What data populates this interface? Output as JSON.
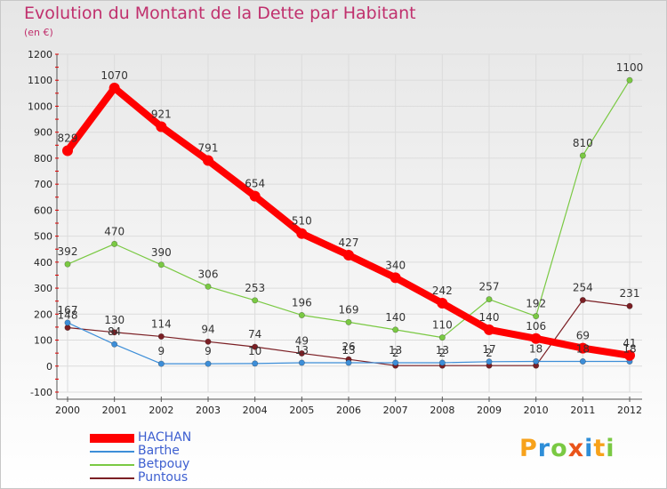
{
  "title": "Evolution du Montant de la Dette par Habitant",
  "subtitle": "(en €)",
  "logo": "Proxiti",
  "colors": {
    "title": "#c0306d",
    "legend_text": "#3d5fd0",
    "grid": "#dcdcdc",
    "axis": "#555555"
  },
  "chart_data": {
    "type": "line",
    "title": "Evolution du Montant de la Dette par Habitant",
    "subtitle": "(en €)",
    "xlabel": "",
    "ylabel": "",
    "ylim": [
      -100,
      1200
    ],
    "yticks": [
      -100,
      0,
      100,
      200,
      300,
      400,
      500,
      600,
      700,
      800,
      900,
      1000,
      1100,
      1200
    ],
    "grid": true,
    "legend_position": "bottom-left",
    "categories": [
      "2000",
      "2001",
      "2002",
      "2003",
      "2004",
      "2005",
      "2006",
      "2007",
      "2008",
      "2009",
      "2010",
      "2011",
      "2012"
    ],
    "series": [
      {
        "name": "HACHAN",
        "color": "#ff0000",
        "values": [
          829,
          1070,
          921,
          791,
          654,
          510,
          427,
          340,
          242,
          140,
          106,
          69,
          41
        ],
        "labels": [
          "829",
          "1070",
          "921",
          "791",
          "654",
          "510",
          "427",
          "340",
          "242",
          "140",
          "106",
          "69",
          "41"
        ]
      },
      {
        "name": "Barthe",
        "color": "#3d8ed8",
        "values": [
          167,
          84,
          9,
          9,
          10,
          13,
          13,
          13,
          13,
          17,
          18,
          18,
          18
        ],
        "labels": [
          "167",
          "84",
          "9",
          "9",
          "10",
          "13",
          "13",
          "13",
          "13",
          "17",
          "18",
          "18",
          "18"
        ]
      },
      {
        "name": "Betpouy",
        "color": "#7ac943",
        "values": [
          392,
          470,
          390,
          306,
          253,
          196,
          169,
          140,
          110,
          257,
          192,
          810,
          1100
        ],
        "labels": [
          "392",
          "470",
          "390",
          "306",
          "253",
          "196",
          "169",
          "140",
          "110",
          "257",
          "192",
          "810",
          "1100"
        ]
      },
      {
        "name": "Puntous",
        "color": "#7b1f24",
        "values": [
          148,
          130,
          114,
          94,
          74,
          49,
          26,
          2,
          2,
          2,
          2,
          254,
          231
        ],
        "labels": [
          "148",
          "130",
          "114",
          "94",
          "74",
          "49",
          "26",
          "2",
          "2",
          "2",
          "",
          "254",
          "231"
        ]
      }
    ]
  }
}
